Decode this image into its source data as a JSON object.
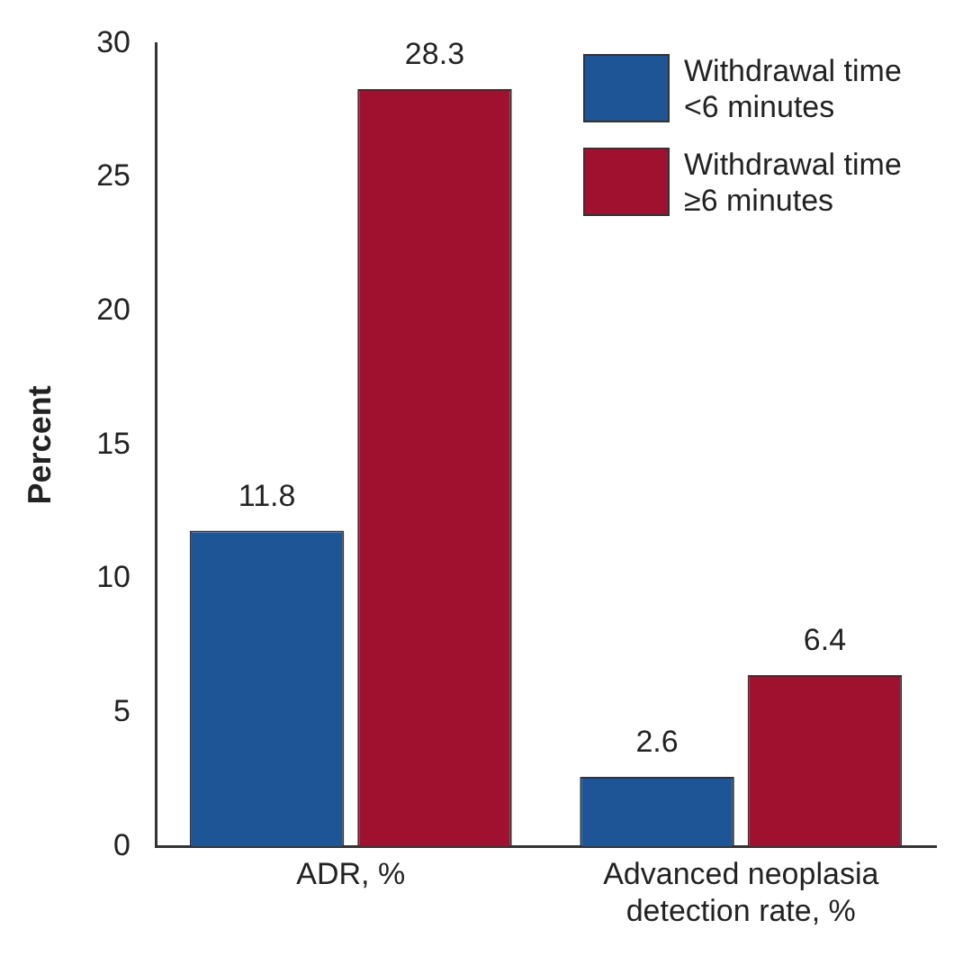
{
  "chart_data": {
    "type": "bar",
    "ylabel": "Percent",
    "categories": [
      "ADR, %",
      "Advanced neoplasia detection rate, %"
    ],
    "series": [
      {
        "name": "Withdrawal time\n<6 minutes",
        "color": "#1d5596",
        "values": [
          11.8,
          2.6
        ]
      },
      {
        "name": "Withdrawal time\n≥6 minutes",
        "color": "#a0112f",
        "values": [
          28.3,
          6.4
        ]
      }
    ],
    "ylim": [
      0,
      30
    ],
    "yticks": [
      0,
      5,
      10,
      15,
      20,
      25,
      30
    ],
    "grid": false,
    "legend": "top right",
    "data_labels": true
  }
}
